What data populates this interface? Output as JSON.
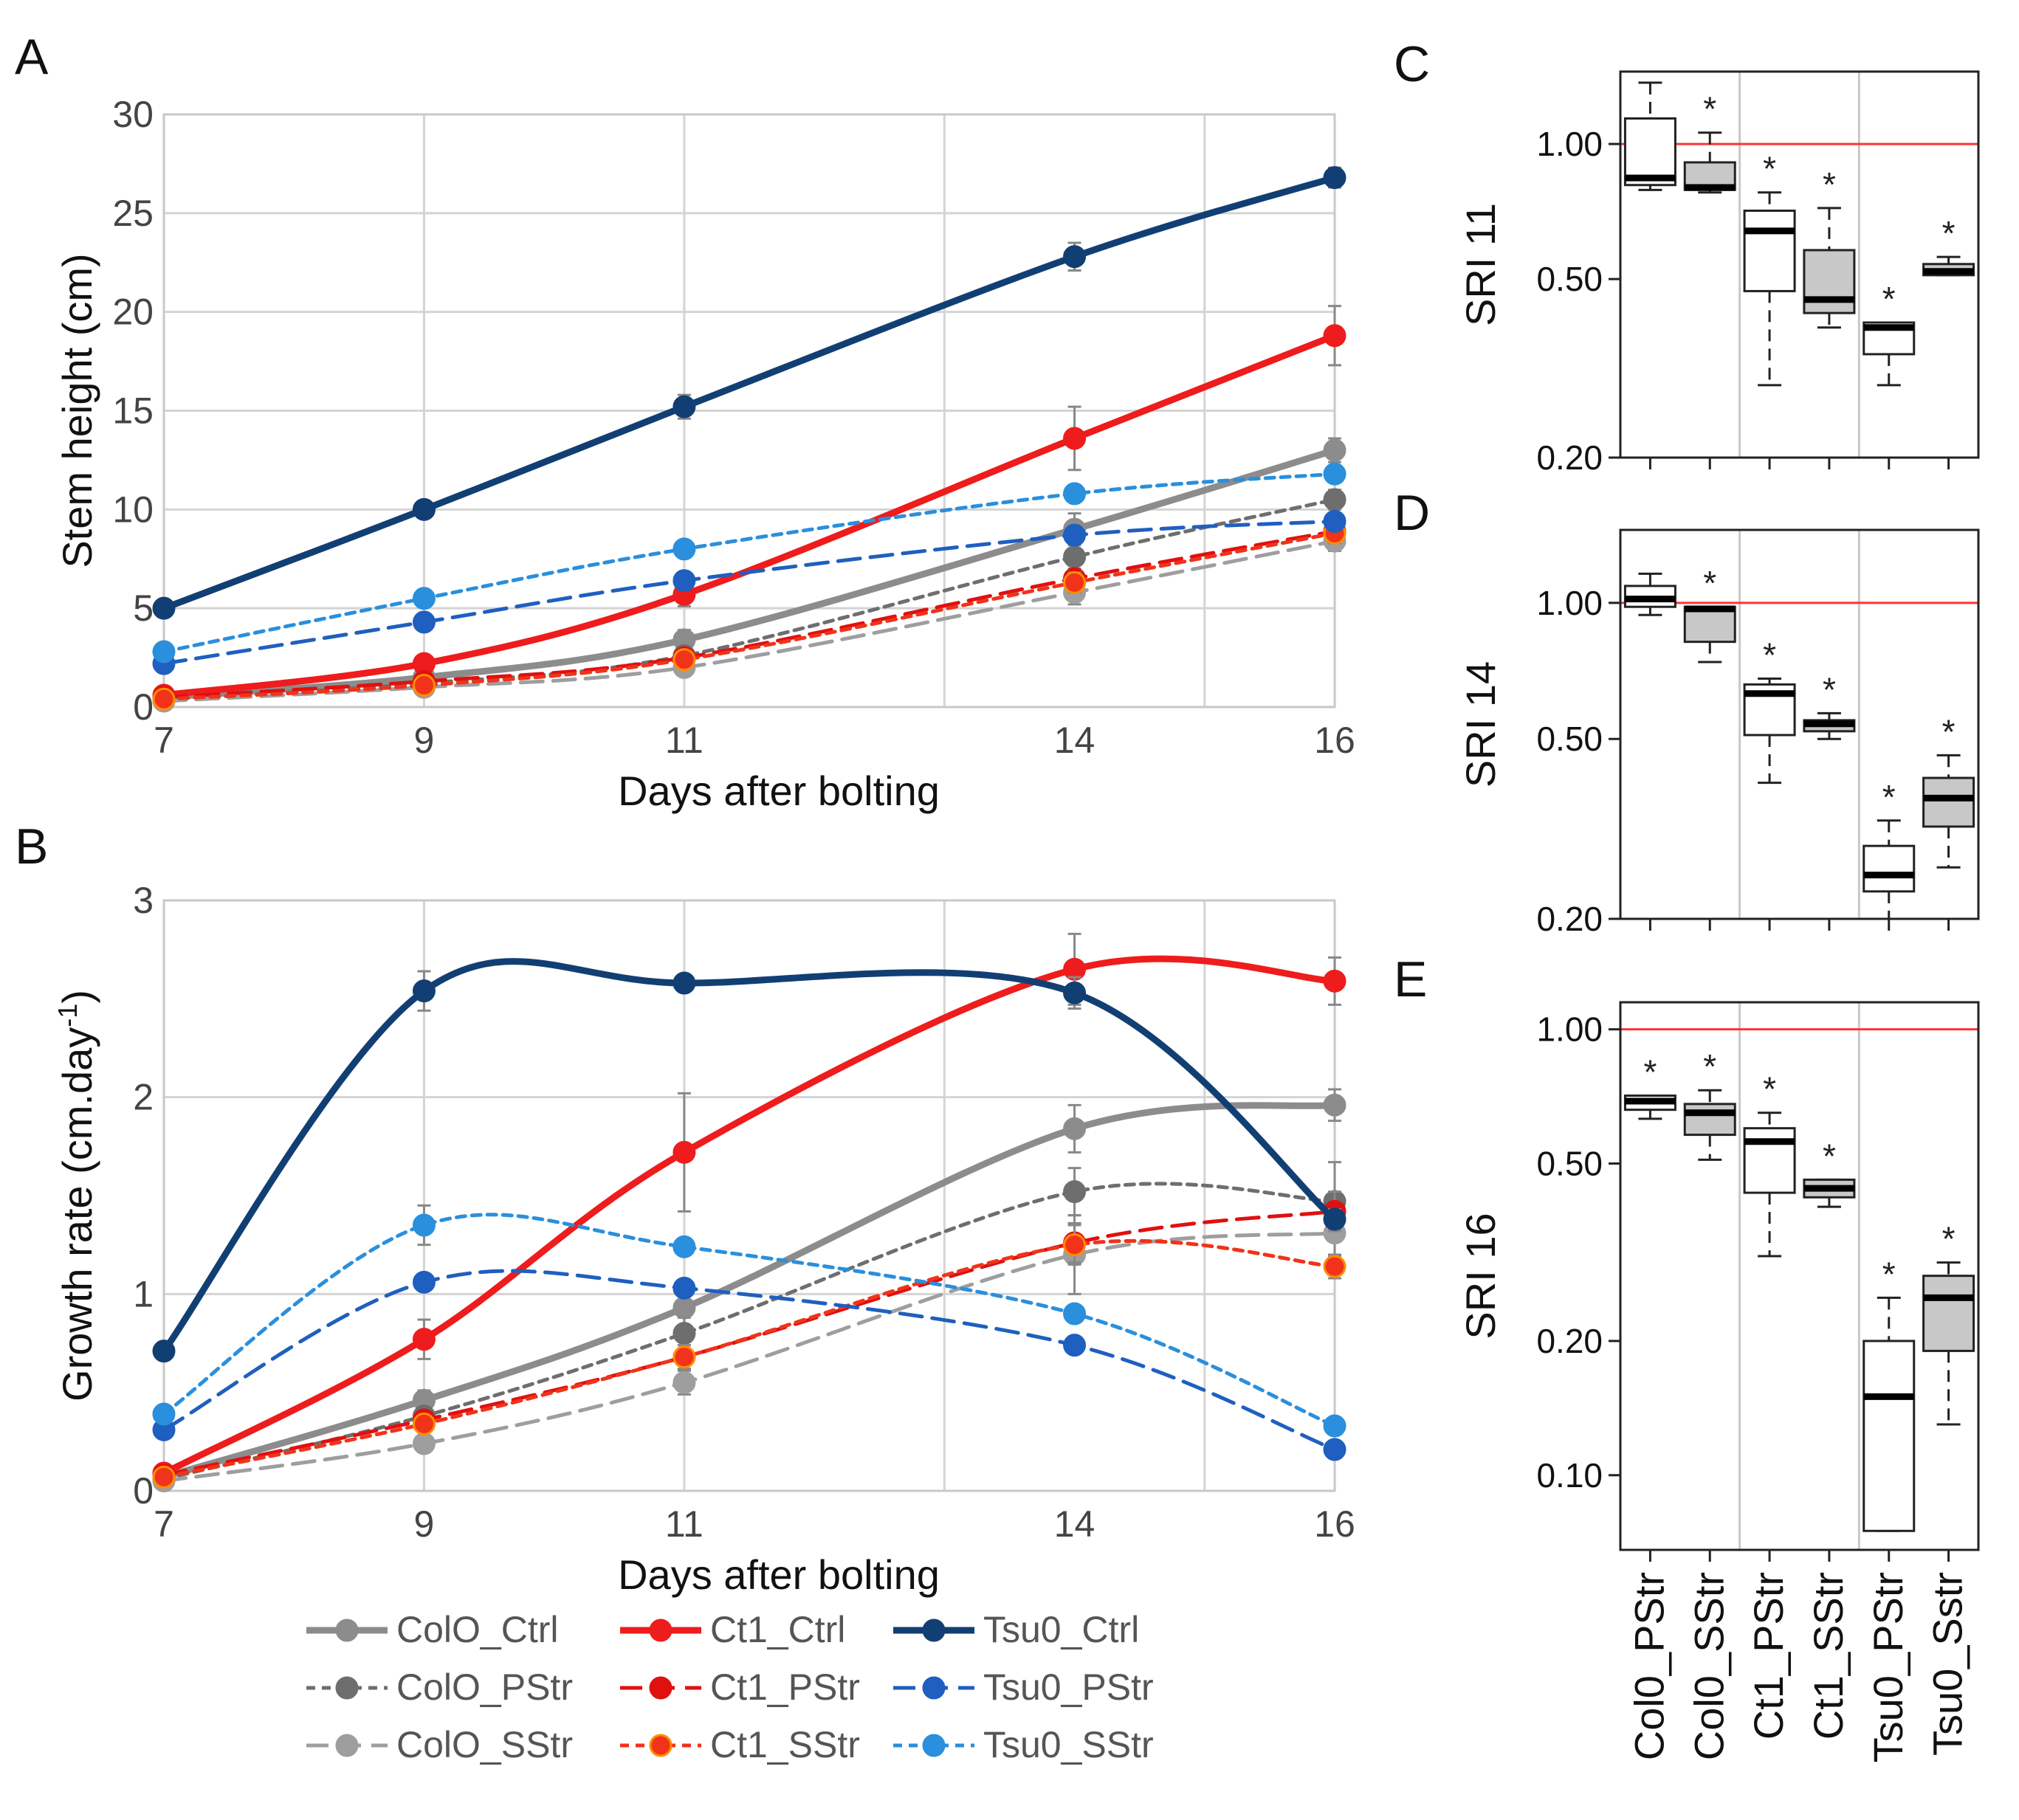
{
  "chart_data": [
    {
      "panel": "A",
      "type": "line",
      "xlabel": "Days after bolting",
      "ylabel": "Stem height (cm)",
      "x": [
        7,
        9,
        11,
        14,
        16
      ],
      "xticks": [
        "7",
        "9",
        "11",
        "14",
        "16"
      ],
      "xlim": [
        7,
        16
      ],
      "ylim": [
        0,
        30
      ],
      "yticks": [
        "0",
        "5",
        "10",
        "15",
        "20",
        "25",
        "30"
      ],
      "grid": true,
      "series": [
        {
          "name": "ColO_Ctrl",
          "values": [
            0.5,
            1.5,
            3.4,
            9.0,
            13.0
          ],
          "err": [
            0.1,
            0.2,
            0.5,
            0.8,
            0.6
          ],
          "color": "#8c8c8c",
          "dash": "solid"
        },
        {
          "name": "ColO_PStr",
          "values": [
            0.4,
            1.2,
            2.6,
            7.6,
            10.5
          ],
          "err": [
            0.1,
            0.2,
            0.4,
            0.6,
            0.5
          ],
          "color": "#6e6e6e",
          "dash": "short"
        },
        {
          "name": "ColO_SStr",
          "values": [
            0.3,
            1.0,
            2.0,
            5.8,
            8.4
          ],
          "err": [
            0.1,
            0.2,
            0.3,
            0.6,
            0.5
          ],
          "color": "#9e9e9e",
          "dash": "long"
        },
        {
          "name": "Ct1_Ctrl",
          "values": [
            0.6,
            2.2,
            5.7,
            13.6,
            18.8
          ],
          "err": [
            0.2,
            0.3,
            0.6,
            1.6,
            1.5
          ],
          "color": "#ee1c1c",
          "dash": "solid"
        },
        {
          "name": "Ct1_PStr",
          "values": [
            0.5,
            1.3,
            2.5,
            6.5,
            8.9
          ],
          "err": [
            0.1,
            0.2,
            0.4,
            0.5,
            0.5
          ],
          "color": "#e01010",
          "dash": "long"
        },
        {
          "name": "Ct1_SStr",
          "values": [
            0.4,
            1.1,
            2.4,
            6.3,
            8.8
          ],
          "err": [
            0.1,
            0.2,
            0.3,
            0.5,
            0.5
          ],
          "color": "#f0331a",
          "dash": "short"
        },
        {
          "name": "Tsu0_Ctrl",
          "values": [
            5.0,
            10.0,
            15.2,
            22.8,
            26.8
          ],
          "err": [
            0.2,
            0.4,
            0.6,
            0.7,
            0.5
          ],
          "color": "#123f73",
          "dash": "solid"
        },
        {
          "name": "Tsu0_PStr",
          "values": [
            2.2,
            4.3,
            6.4,
            8.7,
            9.4
          ],
          "err": [
            0.2,
            0.3,
            0.3,
            0.4,
            0.4
          ],
          "color": "#1f5fbf",
          "dash": "long"
        },
        {
          "name": "Tsu0_SStr",
          "values": [
            2.8,
            5.5,
            8.0,
            10.8,
            11.8
          ],
          "err": [
            0.2,
            0.3,
            0.3,
            0.4,
            0.4
          ],
          "color": "#2a8fdc",
          "dash": "short"
        }
      ]
    },
    {
      "panel": "B",
      "type": "line",
      "xlabel": "Days after bolting",
      "ylabel": "Growth rate (cm.day",
      "ylabel_sup": "-1",
      "ylabel_end": ")",
      "x": [
        7,
        9,
        11,
        14,
        16
      ],
      "xticks": [
        "7",
        "9",
        "11",
        "14",
        "16"
      ],
      "xlim": [
        7,
        16
      ],
      "ylim": [
        0,
        3
      ],
      "yticks": [
        "0",
        "1",
        "2",
        "3"
      ],
      "grid": true,
      "series": [
        {
          "name": "ColO_Ctrl",
          "values": [
            0.07,
            0.46,
            0.93,
            1.84,
            1.96
          ],
          "err": [
            0.02,
            0.05,
            0.1,
            0.12,
            0.08
          ],
          "color": "#8c8c8c",
          "dash": "solid"
        },
        {
          "name": "ColO_PStr",
          "values": [
            0.06,
            0.38,
            0.8,
            1.52,
            1.47
          ],
          "err": [
            0.02,
            0.05,
            0.08,
            0.12,
            0.2
          ],
          "color": "#6e6e6e",
          "dash": "short"
        },
        {
          "name": "ColO_SStr",
          "values": [
            0.05,
            0.24,
            0.55,
            1.2,
            1.31
          ],
          "err": [
            0.02,
            0.04,
            0.06,
            0.2,
            0.12
          ],
          "color": "#9e9e9e",
          "dash": "long"
        },
        {
          "name": "Ct1_Ctrl",
          "values": [
            0.09,
            0.77,
            1.72,
            2.65,
            2.59
          ],
          "err": [
            0.02,
            0.1,
            0.3,
            0.18,
            0.12
          ],
          "color": "#ee1c1c",
          "dash": "solid"
        },
        {
          "name": "Ct1_PStr",
          "values": [
            0.08,
            0.36,
            0.68,
            1.26,
            1.42
          ],
          "err": [
            0.02,
            0.04,
            0.06,
            0.1,
            0.1
          ],
          "color": "#e01010",
          "dash": "long"
        },
        {
          "name": "Ct1_SStr",
          "values": [
            0.07,
            0.34,
            0.68,
            1.25,
            1.14
          ],
          "err": [
            0.02,
            0.04,
            0.06,
            0.1,
            0.06
          ],
          "color": "#f0331a",
          "dash": "short"
        },
        {
          "name": "Tsu0_Ctrl",
          "values": [
            0.71,
            2.54,
            2.58,
            2.53,
            1.38
          ],
          "err": [
            0.03,
            0.1,
            0.03,
            0.08,
            0.05
          ],
          "color": "#123f73",
          "dash": "solid"
        },
        {
          "name": "Tsu0_PStr",
          "values": [
            0.31,
            1.06,
            1.03,
            0.74,
            0.21
          ],
          "err": [
            0.02,
            0.04,
            0.03,
            0.03,
            0.02
          ],
          "color": "#1f5fbf",
          "dash": "long"
        },
        {
          "name": "Tsu0_SStr",
          "values": [
            0.39,
            1.35,
            1.24,
            0.9,
            0.33
          ],
          "err": [
            0.02,
            0.1,
            0.04,
            0.04,
            0.02
          ],
          "color": "#2a8fdc",
          "dash": "short"
        }
      ]
    },
    {
      "panel": "C",
      "type": "box",
      "ylabel": "SRI 11",
      "yscale": "log",
      "ylim": [
        0.2,
        1.45
      ],
      "yticks": [
        {
          "v": 0.2,
          "label": "0.20"
        },
        {
          "v": 0.5,
          "label": "0.50"
        },
        {
          "v": 1.0,
          "label": "1.00"
        }
      ],
      "reference_line": 1.0,
      "star": "*",
      "boxes": [
        {
          "group": "Col0_PStr",
          "lw": 0.79,
          "q1": 0.81,
          "med": 0.84,
          "q3": 1.14,
          "hw": 1.37,
          "fill": "#ffffff",
          "star": false
        },
        {
          "group": "Col0_SStr",
          "lw": 0.78,
          "q1": 0.79,
          "med": 0.8,
          "q3": 0.91,
          "hw": 1.06,
          "fill": "#c8c8c8",
          "star": true
        },
        {
          "group": "Ct1_PStr",
          "lw": 0.29,
          "q1": 0.47,
          "med": 0.64,
          "q3": 0.71,
          "hw": 0.78,
          "fill": "#ffffff",
          "star": true
        },
        {
          "group": "Ct1_SStr",
          "lw": 0.39,
          "q1": 0.42,
          "med": 0.45,
          "q3": 0.58,
          "hw": 0.72,
          "fill": "#c8c8c8",
          "star": true
        },
        {
          "group": "Tsu0_PStr",
          "lw": 0.29,
          "q1": 0.34,
          "med": 0.39,
          "q3": 0.4,
          "hw": 0.4,
          "fill": "#ffffff",
          "star": true
        },
        {
          "group": "Tsu0_Sstr",
          "lw": 0.51,
          "q1": 0.51,
          "med": 0.52,
          "q3": 0.54,
          "hw": 0.56,
          "fill": "#c8c8c8",
          "star": true
        }
      ]
    },
    {
      "panel": "D",
      "type": "box",
      "ylabel": "SRI 14",
      "yscale": "log",
      "ylim": [
        0.2,
        1.45
      ],
      "yticks": [
        {
          "v": 0.2,
          "label": "0.20"
        },
        {
          "v": 0.5,
          "label": "0.50"
        },
        {
          "v": 1.0,
          "label": "1.00"
        }
      ],
      "reference_line": 1.0,
      "star": "*",
      "boxes": [
        {
          "group": "Col0_PStr",
          "lw": 0.94,
          "q1": 0.98,
          "med": 1.02,
          "q3": 1.09,
          "hw": 1.16,
          "fill": "#ffffff",
          "star": false
        },
        {
          "group": "Col0_SStr",
          "lw": 0.74,
          "q1": 0.82,
          "med": 0.97,
          "q3": 0.98,
          "hw": 0.98,
          "fill": "#c8c8c8",
          "star": true
        },
        {
          "group": "Ct1_PStr",
          "lw": 0.4,
          "q1": 0.51,
          "med": 0.63,
          "q3": 0.66,
          "hw": 0.68,
          "fill": "#ffffff",
          "star": true
        },
        {
          "group": "Ct1_SStr",
          "lw": 0.5,
          "q1": 0.52,
          "med": 0.54,
          "q3": 0.55,
          "hw": 0.57,
          "fill": "#c8c8c8",
          "star": true
        },
        {
          "group": "Tsu0_PStr",
          "lw": 0.2,
          "q1": 0.23,
          "med": 0.25,
          "q3": 0.29,
          "hw": 0.33,
          "fill": "#ffffff",
          "star": true
        },
        {
          "group": "Tsu0_Sstr",
          "lw": 0.26,
          "q1": 0.32,
          "med": 0.37,
          "q3": 0.41,
          "hw": 0.46,
          "fill": "#c8c8c8",
          "star": true
        }
      ]
    },
    {
      "panel": "E",
      "type": "box",
      "ylabel": "SRI 16",
      "yscale": "log",
      "ylim": [
        0.068,
        1.15
      ],
      "yticks": [
        {
          "v": 0.1,
          "label": "0.10"
        },
        {
          "v": 0.2,
          "label": "0.20"
        },
        {
          "v": 0.5,
          "label": "0.50"
        },
        {
          "v": 1.0,
          "label": "1.00"
        }
      ],
      "reference_line": 1.0,
      "star": "*",
      "xlabels": [
        "Col0_PStr",
        "Col0_SStr",
        "Ct1_PStr",
        "Ct1_SStr",
        "Tsu0_PStr",
        "Tsu0_Sstr"
      ],
      "boxes": [
        {
          "group": "Col0_PStr",
          "lw": 0.63,
          "q1": 0.66,
          "med": 0.69,
          "q3": 0.71,
          "hw": 0.71,
          "fill": "#ffffff",
          "star": true
        },
        {
          "group": "Col0_SStr",
          "lw": 0.51,
          "q1": 0.58,
          "med": 0.65,
          "q3": 0.68,
          "hw": 0.73,
          "fill": "#c8c8c8",
          "star": true
        },
        {
          "group": "Ct1_PStr",
          "lw": 0.31,
          "q1": 0.43,
          "med": 0.56,
          "q3": 0.6,
          "hw": 0.65,
          "fill": "#ffffff",
          "star": true
        },
        {
          "group": "Ct1_SStr",
          "lw": 0.4,
          "q1": 0.42,
          "med": 0.44,
          "q3": 0.46,
          "hw": 0.46,
          "fill": "#c8c8c8",
          "star": true
        },
        {
          "group": "Tsu0_PStr",
          "lw": 0.075,
          "q1": 0.075,
          "med": 0.15,
          "q3": 0.2,
          "hw": 0.25,
          "fill": "#ffffff",
          "star": true
        },
        {
          "group": "Tsu0_Sstr",
          "lw": 0.13,
          "q1": 0.19,
          "med": 0.25,
          "q3": 0.28,
          "hw": 0.3,
          "fill": "#c8c8c8",
          "star": true
        }
      ]
    }
  ],
  "legend": {
    "entries": [
      "ColO_Ctrl",
      "Ct1_Ctrl",
      "Tsu0_Ctrl",
      "ColO_PStr",
      "Ct1_PStr",
      "Tsu0_PStr",
      "ColO_SStr",
      "Ct1_SStr",
      "Tsu0_SStr"
    ]
  }
}
